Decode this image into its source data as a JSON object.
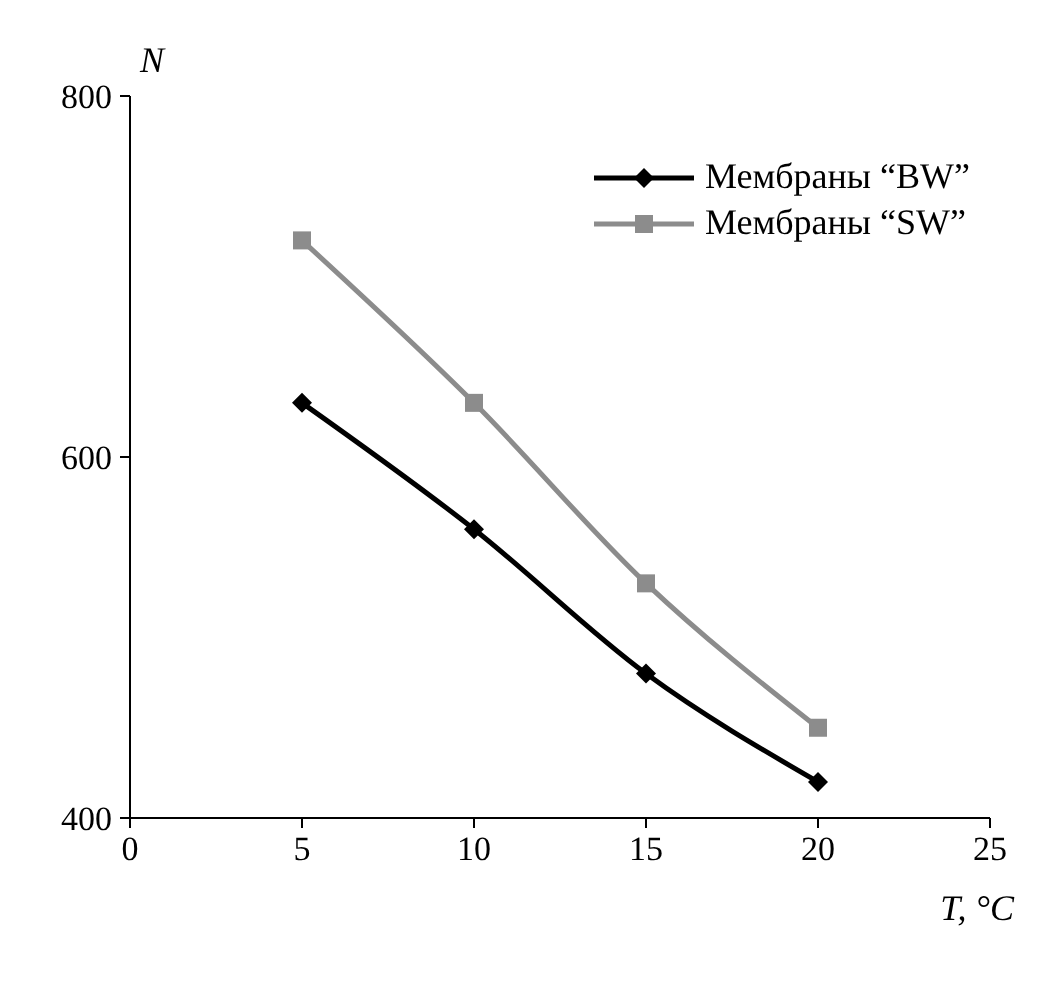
{
  "chart_data": {
    "type": "line",
    "xlabel": "T, °C",
    "ylabel": "N",
    "x": [
      5,
      10,
      15,
      20
    ],
    "series": [
      {
        "name": "Мембраны “BW”",
        "color": "#000000",
        "marker": "diamond",
        "values": [
          630,
          560,
          480,
          420
        ]
      },
      {
        "name": "Мембраны “SW”",
        "color": "#8c8c8c",
        "marker": "square",
        "values": [
          720,
          630,
          530,
          450
        ]
      }
    ],
    "xlim": [
      0,
      25
    ],
    "xticks": [
      0,
      5,
      10,
      15,
      20,
      25
    ],
    "ylim": [
      400,
      800
    ],
    "yticks": [
      400,
      600,
      800
    ],
    "grid": false,
    "legend": "top right"
  }
}
